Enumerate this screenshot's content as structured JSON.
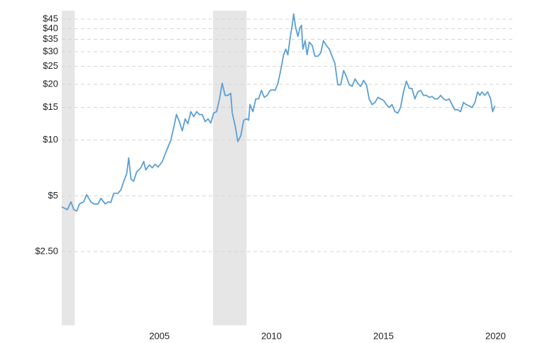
{
  "chart_data": {
    "type": "line",
    "x": [
      2000.64,
      2000.89,
      2001.05,
      2001.18,
      2001.31,
      2001.43,
      2001.62,
      2001.75,
      2001.94,
      2002.07,
      2002.26,
      2002.39,
      2002.58,
      2002.71,
      2002.83,
      2002.96,
      2003.15,
      2003.28,
      2003.41,
      2003.54,
      2003.63,
      2003.73,
      2003.85,
      2003.98,
      2004.17,
      2004.3,
      2004.39,
      2004.55,
      2004.68,
      2004.81,
      2004.94,
      2005.13,
      2005.25,
      2005.38,
      2005.51,
      2005.64,
      2005.76,
      2005.89,
      2006.02,
      2006.15,
      2006.27,
      2006.4,
      2006.53,
      2006.66,
      2006.78,
      2006.91,
      2007.04,
      2007.17,
      2007.29,
      2007.42,
      2007.55,
      2007.68,
      2007.8,
      2007.93,
      2008.06,
      2008.18,
      2008.25,
      2008.38,
      2008.5,
      2008.63,
      2008.76,
      2008.89,
      2008.98,
      2009.04,
      2009.17,
      2009.3,
      2009.43,
      2009.55,
      2009.68,
      2009.81,
      2009.94,
      2010.06,
      2010.16,
      2010.29,
      2010.41,
      2010.54,
      2010.64,
      2010.73,
      2010.86,
      2010.92,
      2010.99,
      2011.08,
      2011.18,
      2011.27,
      2011.34,
      2011.4,
      2011.5,
      2011.59,
      2011.69,
      2011.82,
      2011.94,
      2012.07,
      2012.2,
      2012.32,
      2012.45,
      2012.58,
      2012.68,
      2012.83,
      2012.96,
      2013.09,
      2013.22,
      2013.34,
      2013.47,
      2013.6,
      2013.73,
      2013.85,
      2013.98,
      2014.11,
      2014.24,
      2014.36,
      2014.49,
      2014.62,
      2014.75,
      2014.87,
      2015.0,
      2015.13,
      2015.25,
      2015.38,
      2015.51,
      2015.64,
      2015.76,
      2015.89,
      2016.02,
      2016.15,
      2016.27,
      2016.4,
      2016.53,
      2016.66,
      2016.78,
      2016.91,
      2017.04,
      2017.17,
      2017.29,
      2017.42,
      2017.55,
      2017.68,
      2017.8,
      2017.93,
      2018.06,
      2018.18,
      2018.31,
      2018.44,
      2018.57,
      2018.69,
      2018.82,
      2018.95,
      2019.08,
      2019.2,
      2019.3,
      2019.39,
      2019.52,
      2019.65,
      2019.78,
      2019.87,
      2019.97
    ],
    "series": [
      {
        "color": "#5b9fd4",
        "values": [
          4.36,
          4.21,
          4.64,
          4.21,
          4.14,
          4.52,
          4.64,
          5.07,
          4.64,
          4.52,
          4.52,
          4.85,
          4.52,
          4.64,
          4.6,
          5.16,
          5.16,
          5.39,
          5.99,
          6.6,
          8.02,
          6.15,
          5.99,
          6.72,
          7.09,
          7.67,
          6.9,
          7.34,
          7.09,
          7.4,
          7.15,
          7.67,
          8.38,
          9.15,
          10,
          11.72,
          13.74,
          12.58,
          11.22,
          13.03,
          12.25,
          14.24,
          13.38,
          14.24,
          13.74,
          13.74,
          12.58,
          13.03,
          12.36,
          14.0,
          14.24,
          16.69,
          20.27,
          17.44,
          17.44,
          17.91,
          14.0,
          11.93,
          9.82,
          10.54,
          12.8,
          13.03,
          12.8,
          15.55,
          14.24,
          16.69,
          16.69,
          18.56,
          17.0,
          17.44,
          18.56,
          18.7,
          18.56,
          20.27,
          23.75,
          28.86,
          30.97,
          28.86,
          37.61,
          41.08,
          48,
          40.5,
          36.3,
          40.5,
          41.7,
          30.97,
          34.4,
          28.86,
          33.8,
          32.4,
          28.35,
          28.35,
          29.6,
          34.4,
          32.4,
          30.97,
          28.86,
          25.95,
          19.9,
          19.9,
          23.75,
          22.1,
          19.9,
          19.5,
          21.4,
          20.27,
          19.5,
          21.0,
          19.9,
          16.69,
          15.55,
          15.97,
          17.0,
          16.69,
          16.4,
          15.55,
          15.0,
          15.55,
          14.24,
          14.0,
          15.0,
          18.2,
          20.8,
          19.0,
          19.0,
          16.69,
          18.2,
          18.56,
          17.44,
          17.44,
          17.0,
          17.2,
          16.69,
          16.69,
          17.44,
          16.69,
          16.4,
          16.69,
          15.55,
          14.6,
          14.6,
          14.24,
          15.97,
          15.55,
          15.3,
          15.0,
          15.97,
          18.2,
          17.44,
          18.2,
          17.44,
          18.2,
          16.69,
          14.24,
          15.3
        ]
      }
    ],
    "recessions": [
      [
        2000.64,
        2001.22
      ],
      [
        2007.39,
        2008.89
      ]
    ],
    "xlim": [
      2000.64,
      2020.75
    ],
    "xticks": [
      2005,
      2010,
      2015,
      2020
    ],
    "ylim": [
      1,
      50
    ],
    "log_y": true,
    "yticks": [
      {
        "value": 2.5,
        "label": "$2.50"
      },
      {
        "value": 5,
        "label": "$5"
      },
      {
        "value": 10,
        "label": "$10"
      },
      {
        "value": 15,
        "label": "$15"
      },
      {
        "value": 20,
        "label": "$20"
      },
      {
        "value": 25,
        "label": "$25"
      },
      {
        "value": 30,
        "label": "$30"
      },
      {
        "value": 35,
        "label": "$35"
      },
      {
        "value": 40,
        "label": "$40"
      },
      {
        "value": 45,
        "label": "$45"
      }
    ],
    "grid": true
  }
}
